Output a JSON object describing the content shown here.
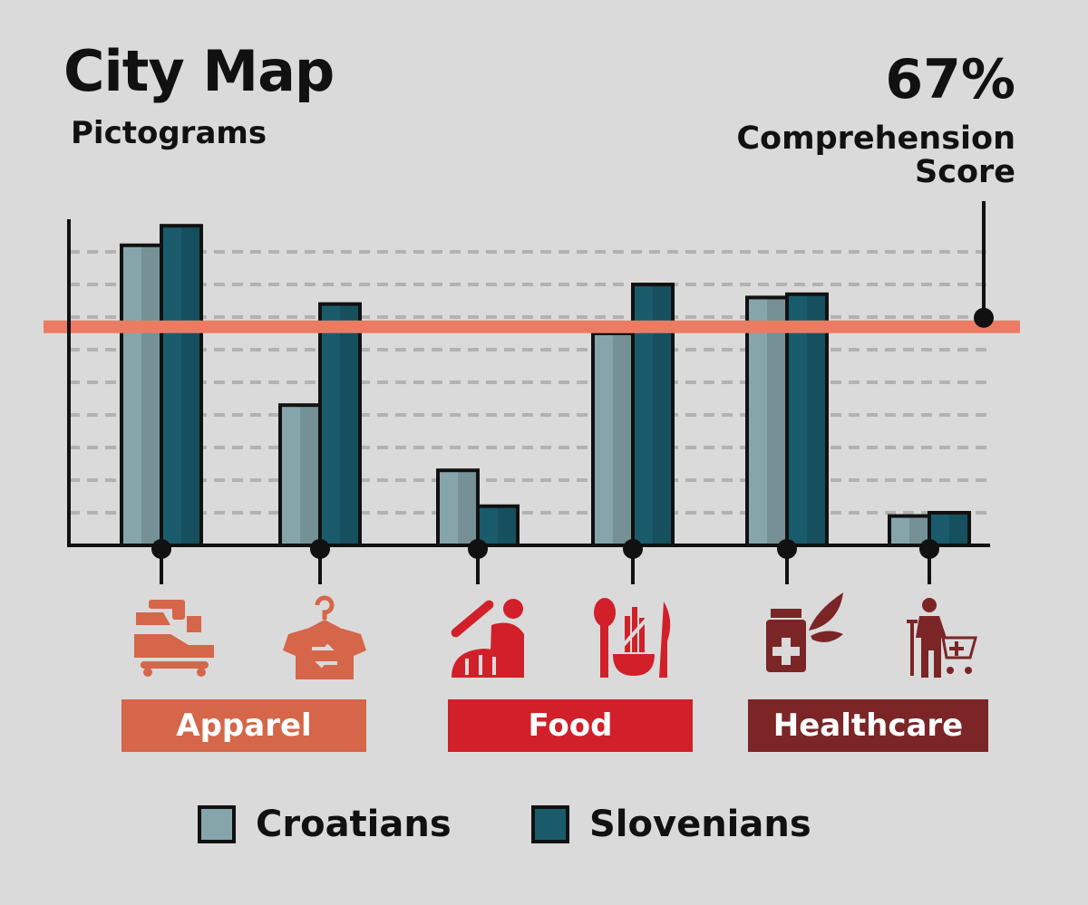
{
  "header": {
    "title": "City Map",
    "subtitle": "Pictograms",
    "score_value": "67%",
    "score_label": "Comprehension Score"
  },
  "colors": {
    "background": "#dadada",
    "croatians": "#86a5ab",
    "slovenians": "#1a5b6b",
    "threshold_line": "#ec7b64",
    "apparel": "#d5664a",
    "food": "#d1202a",
    "healthcare": "#7b2527",
    "grid": "#b2b2b2"
  },
  "chart_data": {
    "type": "bar",
    "categories": [
      "Shoe repair",
      "Dry cleaning",
      "Bakery",
      "Vegetarian food",
      "Pharmacy",
      "Medical aids"
    ],
    "series": [
      {
        "name": "Croatians",
        "values": [
          92,
          43,
          23,
          65,
          76,
          9
        ]
      },
      {
        "name": "Slovenians",
        "values": [
          98,
          74,
          12,
          80,
          77,
          10
        ]
      }
    ],
    "threshold": {
      "value": 67,
      "label": "67% Comprehension Score"
    },
    "ylim": [
      0,
      100
    ],
    "grid": true,
    "groups": [
      {
        "label": "Apparel",
        "categories": [
          "Shoe repair",
          "Dry cleaning"
        ]
      },
      {
        "label": "Food",
        "categories": [
          "Bakery",
          "Vegetarian food"
        ]
      },
      {
        "label": "Healthcare",
        "categories": [
          "Pharmacy",
          "Medical aids"
        ]
      }
    ],
    "legend": {
      "placement": "bottom",
      "entries": [
        "Croatians",
        "Slovenians"
      ]
    }
  },
  "icons": [
    "shoe-repair-icon",
    "dry-cleaning-icon",
    "bakery-icon",
    "vegetarian-food-icon",
    "pharmacy-icon",
    "medical-aids-icon"
  ]
}
